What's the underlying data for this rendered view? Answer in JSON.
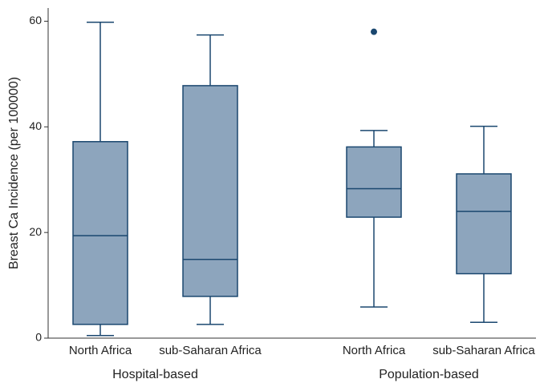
{
  "chart_data": {
    "type": "box",
    "y_label": "Breast Ca Incidence (per 100000)",
    "ylim": [
      0,
      62.5
    ],
    "yticks": [
      0,
      20,
      40,
      60
    ],
    "color": "#8da5bd",
    "edge_color": "#1a476f",
    "groups": [
      {
        "name": "Hospital-based",
        "boxes": [
          {
            "category": "North Africa",
            "whislo": 0.5,
            "q1": 2.6,
            "median": 19.4,
            "q3": 37.2,
            "whishi": 59.8
          },
          {
            "category": "sub-Saharan Africa",
            "whislo": 2.6,
            "q1": 7.9,
            "median": 14.9,
            "q3": 47.8,
            "whishi": 57.4
          }
        ]
      },
      {
        "name": "Population-based",
        "boxes": [
          {
            "category": "North Africa",
            "whislo": 5.9,
            "q1": 22.9,
            "median": 28.3,
            "q3": 36.2,
            "whishi": 39.3,
            "outliers": [
              58.0
            ]
          },
          {
            "category": "sub-Saharan Africa",
            "whislo": 3.0,
            "q1": 12.2,
            "median": 24.0,
            "q3": 31.1,
            "whishi": 40.1
          }
        ]
      }
    ]
  }
}
